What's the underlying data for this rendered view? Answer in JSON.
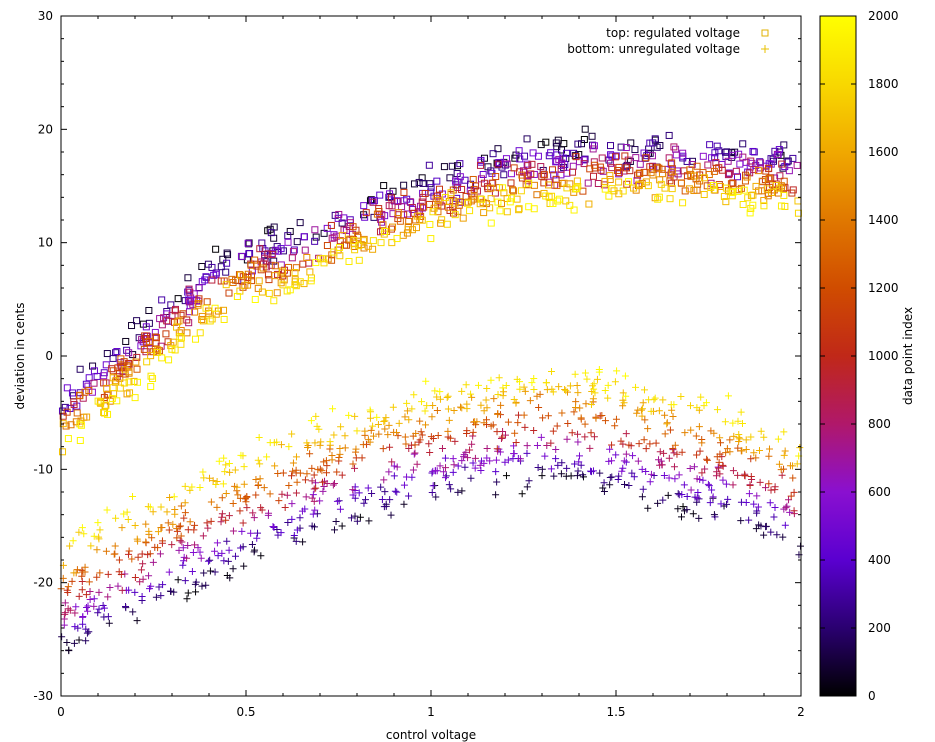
{
  "chart_data": {
    "type": "scatter",
    "xlabel": "control voltage",
    "ylabel": "deviation in cents",
    "colorbar_label": "data point index",
    "xlim": [
      0,
      2
    ],
    "ylim": [
      -30,
      30
    ],
    "x_ticks": [
      0,
      0.5,
      1,
      1.5,
      2
    ],
    "x_tick_labels": [
      "0",
      "0.5",
      "1",
      "1.5",
      "2"
    ],
    "y_ticks": [
      -30,
      -20,
      -10,
      0,
      10,
      20,
      30
    ],
    "y_tick_labels": [
      "-30",
      "-20",
      "-10",
      "0",
      "10",
      "20",
      "30"
    ],
    "colorbar_range": [
      0,
      2000
    ],
    "colorbar_ticks": [
      0,
      200,
      400,
      600,
      800,
      1000,
      1200,
      1400,
      1600,
      1800,
      2000
    ],
    "colorbar_tick_labels": [
      "0",
      "200",
      "400",
      "600",
      "800",
      "1000",
      "1200",
      "1400",
      "1600",
      "1800",
      "2000"
    ],
    "colormap": [
      "#000000",
      "#2a0070",
      "#5a00d0",
      "#8a10d0",
      "#b0186a",
      "#c02818",
      "#d04c00",
      "#e07800",
      "#f0a800",
      "#f8d800",
      "#ffff00"
    ],
    "legend_position": "top-right",
    "series": [
      {
        "name": "top: regulated voltage",
        "marker": "square",
        "legend_color": "#e0b000",
        "points": [
          [
            0.0,
            -6.0
          ],
          [
            0.05,
            -4.2
          ],
          [
            0.1,
            -3.2
          ],
          [
            0.15,
            -1.8
          ],
          [
            0.2,
            -0.4
          ],
          [
            0.25,
            1.0
          ],
          [
            0.3,
            2.6
          ],
          [
            0.35,
            3.9
          ],
          [
            0.4,
            5.1
          ],
          [
            0.45,
            6.2
          ],
          [
            0.5,
            7.0
          ],
          [
            0.55,
            7.6
          ],
          [
            0.6,
            7.8
          ],
          [
            0.65,
            8.4
          ],
          [
            0.7,
            9.0
          ],
          [
            0.75,
            10.2
          ],
          [
            0.8,
            10.9
          ],
          [
            0.85,
            11.6
          ],
          [
            0.9,
            12.2
          ],
          [
            0.95,
            12.8
          ],
          [
            1.0,
            13.3
          ],
          [
            1.05,
            13.9
          ],
          [
            1.1,
            14.4
          ],
          [
            1.15,
            14.8
          ],
          [
            1.2,
            15.2
          ],
          [
            1.25,
            15.5
          ],
          [
            1.3,
            15.7
          ],
          [
            1.35,
            15.9
          ],
          [
            1.4,
            16.0
          ],
          [
            1.45,
            16.1
          ],
          [
            1.5,
            16.1
          ],
          [
            1.55,
            16.1
          ],
          [
            1.6,
            16.1
          ],
          [
            1.65,
            16.1
          ],
          [
            1.7,
            16.0
          ],
          [
            1.75,
            16.0
          ],
          [
            1.8,
            15.9
          ],
          [
            1.85,
            15.8
          ],
          [
            1.9,
            15.6
          ],
          [
            1.95,
            15.3
          ],
          [
            2.0,
            14.8
          ]
        ]
      },
      {
        "name": "bottom: unregulated voltage",
        "marker": "plus",
        "legend_color": "#e8c000",
        "points": [
          [
            0.0,
            -20.8
          ],
          [
            0.05,
            -20.0
          ],
          [
            0.1,
            -19.2
          ],
          [
            0.15,
            -18.4
          ],
          [
            0.2,
            -17.6
          ],
          [
            0.25,
            -16.8
          ],
          [
            0.3,
            -15.9
          ],
          [
            0.35,
            -15.1
          ],
          [
            0.4,
            -14.3
          ],
          [
            0.45,
            -13.5
          ],
          [
            0.5,
            -12.8
          ],
          [
            0.55,
            -12.1
          ],
          [
            0.6,
            -11.4
          ],
          [
            0.65,
            -10.8
          ],
          [
            0.7,
            -10.2
          ],
          [
            0.75,
            -9.6
          ],
          [
            0.8,
            -9.1
          ],
          [
            0.85,
            -8.6
          ],
          [
            0.9,
            -8.1
          ],
          [
            0.95,
            -7.7
          ],
          [
            1.0,
            -7.3
          ],
          [
            1.05,
            -6.9
          ],
          [
            1.1,
            -6.6
          ],
          [
            1.15,
            -6.3
          ],
          [
            1.2,
            -6.1
          ],
          [
            1.25,
            -5.9
          ],
          [
            1.3,
            -5.8
          ],
          [
            1.35,
            -5.8
          ],
          [
            1.4,
            -5.9
          ],
          [
            1.45,
            -6.1
          ],
          [
            1.5,
            -6.4
          ],
          [
            1.55,
            -6.8
          ],
          [
            1.6,
            -7.2
          ],
          [
            1.65,
            -7.6
          ],
          [
            1.7,
            -8.0
          ],
          [
            1.75,
            -8.5
          ],
          [
            1.8,
            -9.0
          ],
          [
            1.85,
            -9.6
          ],
          [
            1.9,
            -10.2
          ],
          [
            1.95,
            -11.0
          ],
          [
            2.0,
            -12.2
          ]
        ]
      }
    ],
    "index_spread": {
      "top: regulated voltage": {
        "index_0_offset": 2.5,
        "index_2000_offset": -2.0,
        "noise": 1.2
      },
      "bottom: unregulated voltage": {
        "index_0_offset": -5.5,
        "index_2000_offset": 4.3,
        "noise": 1.0
      }
    }
  }
}
